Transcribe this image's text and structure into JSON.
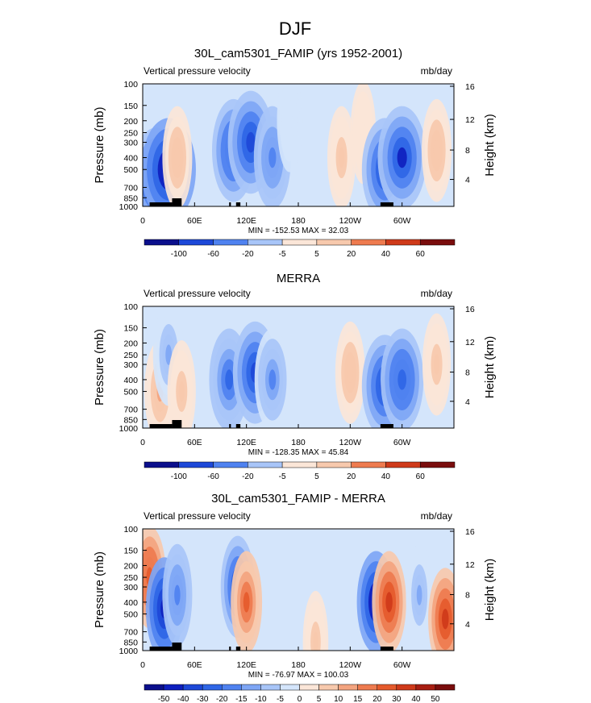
{
  "figure": {
    "title": "DJF"
  },
  "palette": {
    "colors": [
      "#0b0f8c",
      "#0e1fbf",
      "#1d48d8",
      "#2f66e6",
      "#4f82f0",
      "#7ea6f5",
      "#a8c5f8",
      "#d4e5fb",
      "#fbe6d8",
      "#f7c9ad",
      "#f3a47f",
      "#ee7b4f",
      "#e55a2c",
      "#cf3a1a",
      "#a81e12",
      "#7a0d0d"
    ],
    "neutral": "#ffffff"
  },
  "chart_data": [
    {
      "type": "heatmap",
      "title": "30L_cam5301_FAMIP (yrs 1952-2001)",
      "left_label": "Vertical pressure velocity",
      "right_label": "mb/day",
      "ylabel": "Pressure (mb)",
      "ylabel_right": "Height (km)",
      "y_ticks": [
        "100",
        "150",
        "200",
        "250",
        "300",
        "400",
        "500",
        "700",
        "850",
        "1000"
      ],
      "y_ticks_right": [
        "16",
        "12",
        "8",
        "4"
      ],
      "x_ticks": [
        "0",
        "60E",
        "120E",
        "180",
        "120W",
        "60W"
      ],
      "stats": "MIN = -152.53  MAX =  32.03",
      "colorbar_labels": [
        "-100",
        "-60",
        "-20",
        "-5",
        "5",
        "20",
        "40",
        "60"
      ],
      "field": [
        {
          "lon": 15,
          "p": 600,
          "value": -90
        },
        {
          "lon": 30,
          "p": 500,
          "value": -110
        },
        {
          "lon": 40,
          "p": 400,
          "value": 25
        },
        {
          "lon": 105,
          "p": 350,
          "value": -70
        },
        {
          "lon": 125,
          "p": 300,
          "value": -80
        },
        {
          "lon": 150,
          "p": 400,
          "value": -50
        },
        {
          "lon": 170,
          "p": 200,
          "value": -10
        },
        {
          "lon": 230,
          "p": 400,
          "value": 20
        },
        {
          "lon": 255,
          "p": 250,
          "value": 10
        },
        {
          "lon": 280,
          "p": 500,
          "value": -80
        },
        {
          "lon": 300,
          "p": 400,
          "value": -90
        },
        {
          "lon": 340,
          "p": 350,
          "value": 25
        }
      ]
    },
    {
      "type": "heatmap",
      "title": "MERRA",
      "left_label": "Vertical pressure velocity",
      "right_label": "mb/day",
      "ylabel": "Pressure (mb)",
      "ylabel_right": "Height (km)",
      "y_ticks": [
        "100",
        "150",
        "200",
        "250",
        "300",
        "400",
        "500",
        "700",
        "850",
        "1000"
      ],
      "y_ticks_right": [
        "16",
        "12",
        "8",
        "4"
      ],
      "x_ticks": [
        "0",
        "60E",
        "120E",
        "180",
        "120W",
        "60W"
      ],
      "stats": "MIN = -128.35  MAX =  45.84",
      "colorbar_labels": [
        "-100",
        "-60",
        "-20",
        "-5",
        "5",
        "20",
        "40",
        "60"
      ],
      "field": [
        {
          "lon": 20,
          "p": 500,
          "value": 30
        },
        {
          "lon": 30,
          "p": 250,
          "value": -30
        },
        {
          "lon": 45,
          "p": 500,
          "value": 20
        },
        {
          "lon": 100,
          "p": 400,
          "value": -60
        },
        {
          "lon": 130,
          "p": 350,
          "value": -75
        },
        {
          "lon": 150,
          "p": 400,
          "value": -45
        },
        {
          "lon": 240,
          "p": 350,
          "value": 25
        },
        {
          "lon": 280,
          "p": 450,
          "value": -80
        },
        {
          "lon": 300,
          "p": 400,
          "value": -70
        },
        {
          "lon": 340,
          "p": 300,
          "value": 20
        }
      ]
    },
    {
      "type": "heatmap",
      "title": "30L_cam5301_FAMIP - MERRA",
      "left_label": "Vertical pressure velocity",
      "right_label": "mb/day",
      "ylabel": "Pressure (mb)",
      "ylabel_right": "Height (km)",
      "y_ticks": [
        "100",
        "150",
        "200",
        "250",
        "300",
        "400",
        "500",
        "700",
        "850",
        "1000"
      ],
      "y_ticks_right": [
        "16",
        "12",
        "8",
        "4"
      ],
      "x_ticks": [
        "0",
        "60E",
        "120E",
        "180",
        "120W",
        "60W"
      ],
      "stats": "MIN = -76.97  MAX = 100.03",
      "colorbar_labels": [
        "-50",
        "-40",
        "-30",
        "-20",
        "-15",
        "-10",
        "-5",
        "0",
        "5",
        "10",
        "15",
        "20",
        "30",
        "40",
        "50"
      ],
      "field": [
        {
          "lon": 8,
          "p": 250,
          "value": 35
        },
        {
          "lon": 25,
          "p": 450,
          "value": -50
        },
        {
          "lon": 40,
          "p": 350,
          "value": -25
        },
        {
          "lon": 110,
          "p": 300,
          "value": -40
        },
        {
          "lon": 120,
          "p": 400,
          "value": 30
        },
        {
          "lon": 200,
          "p": 850,
          "value": 10
        },
        {
          "lon": 270,
          "p": 400,
          "value": -55
        },
        {
          "lon": 285,
          "p": 400,
          "value": 40
        },
        {
          "lon": 320,
          "p": 350,
          "value": -15
        },
        {
          "lon": 350,
          "p": 550,
          "value": 40
        }
      ]
    }
  ]
}
